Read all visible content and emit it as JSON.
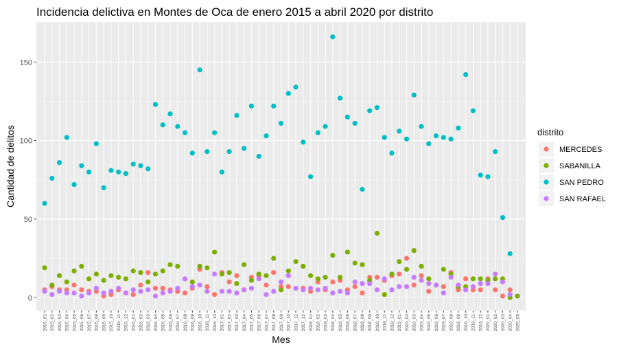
{
  "chart_data": {
    "type": "scatter",
    "title": "Incidencia delictiva en Montes de Oca de enero 2015 a abril 2020 por distrito",
    "xlabel": "Mes",
    "ylabel": "Cantidad de delitos",
    "ylim": [
      0,
      170
    ],
    "yticks": [
      0,
      50,
      100,
      150
    ],
    "grid": true,
    "legend": {
      "title": "distrito",
      "position": "right"
    },
    "categories": [
      "2015_01",
      "2015_02",
      "2015_03",
      "2015_04",
      "2015_05",
      "2015_06",
      "2015_07",
      "2015_08",
      "2015_09",
      "2015_10",
      "2015_11",
      "2015_12",
      "2016_01",
      "2016_02",
      "2016_03",
      "2016_04",
      "2016_05",
      "2016_06",
      "2016_07",
      "2016_08",
      "2016_09",
      "2016_10",
      "2016_11",
      "2016_12",
      "2017_01",
      "2017_02",
      "2017_03",
      "2017_04",
      "2017_05",
      "2017_06",
      "2017_07",
      "2017_08",
      "2017_09",
      "2017_10",
      "2017_11",
      "2017_12",
      "2018_01",
      "2018_02",
      "2018_03",
      "2018_04",
      "2018_05",
      "2018_06",
      "2018_07",
      "2018_08",
      "2018_09",
      "2018_10",
      "2018_11",
      "2018_12",
      "2019_01",
      "2019_02",
      "2019_03",
      "2019_04",
      "2019_05",
      "2019_06",
      "2019_07",
      "2019_08",
      "2019_09",
      "2019_10",
      "2019_11",
      "2019_12",
      "2020_01",
      "2020_02",
      "2020_03",
      "2020_04",
      "2020_05"
    ],
    "series": [
      {
        "name": "MERCEDES",
        "color": "#F8766D",
        "values": [
          5,
          7,
          5,
          5,
          8,
          5,
          4,
          4,
          1,
          2,
          5,
          3,
          2,
          8,
          16,
          6,
          6,
          5,
          4,
          3,
          6,
          18,
          7,
          2,
          16,
          10,
          14,
          5,
          13,
          14,
          8,
          16,
          7,
          7,
          6,
          6,
          4,
          10,
          5,
          10,
          11,
          5,
          7,
          3,
          13,
          13,
          11,
          14,
          15,
          25,
          8,
          14,
          4,
          8,
          7,
          16,
          5,
          12,
          5,
          5,
          12,
          5,
          1,
          5,
          null
        ]
      },
      {
        "name": "SABANILLA",
        "color": "#7CAE00",
        "values": [
          19,
          8,
          14,
          10,
          17,
          20,
          12,
          15,
          11,
          14,
          13,
          12,
          17,
          16,
          10,
          15,
          17,
          21,
          20,
          12,
          10,
          20,
          19,
          29,
          15,
          16,
          9,
          21,
          11,
          15,
          14,
          25,
          5,
          17,
          23,
          20,
          14,
          12,
          13,
          27,
          13,
          29,
          22,
          21,
          11,
          41,
          2,
          15,
          23,
          18,
          30,
          20,
          12,
          8,
          18,
          15,
          7,
          7,
          12,
          12,
          11,
          12,
          12,
          0,
          1
        ]
      },
      {
        "name": "SAN PEDRO",
        "color": "#00BFC4",
        "values": [
          60,
          76,
          86,
          102,
          72,
          84,
          80,
          98,
          70,
          81,
          80,
          79,
          85,
          84,
          82,
          123,
          110,
          117,
          109,
          105,
          92,
          145,
          93,
          105,
          80,
          93,
          116,
          95,
          122,
          90,
          103,
          122,
          111,
          130,
          134,
          99,
          77,
          105,
          109,
          166,
          127,
          115,
          111,
          69,
          119,
          121,
          102,
          92,
          106,
          101,
          129,
          109,
          98,
          103,
          102,
          101,
          108,
          142,
          119,
          78,
          77,
          93,
          51,
          28,
          null
        ]
      },
      {
        "name": "SAN RAFAEL",
        "color": "#C77CFF",
        "values": [
          4,
          2,
          4,
          3,
          3,
          1,
          3,
          6,
          3,
          4,
          6,
          3,
          5,
          4,
          5,
          1,
          3,
          4,
          6,
          12,
          7,
          8,
          4,
          15,
          4,
          4,
          3,
          5,
          6,
          12,
          2,
          4,
          10,
          14,
          6,
          5,
          6,
          5,
          6,
          3,
          4,
          3,
          10,
          9,
          9,
          5,
          12,
          5,
          7,
          7,
          13,
          11,
          9,
          8,
          3,
          13,
          8,
          5,
          7,
          9,
          9,
          15,
          10,
          2,
          null
        ]
      }
    ]
  }
}
